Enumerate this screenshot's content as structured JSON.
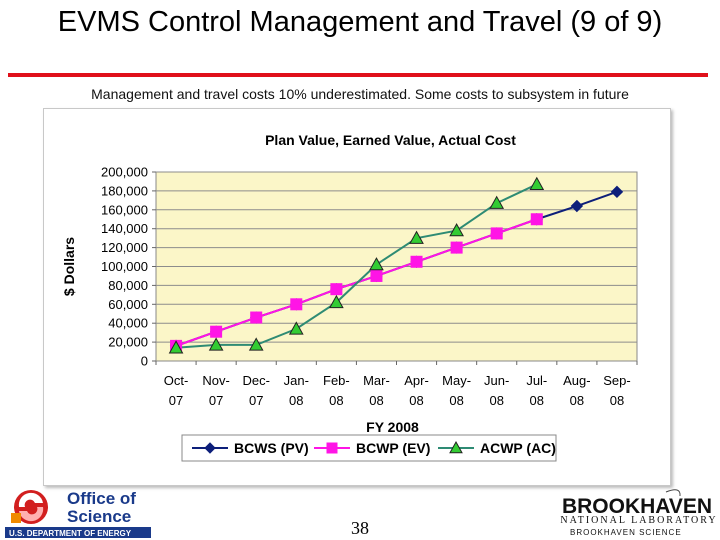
{
  "slide": {
    "title": "EVMS Control Management and Travel (9 of 9)",
    "subtitle": "Management and travel costs 10% underestimated. Some costs to subsystem in future",
    "page_number": "38",
    "accent_color": "#e0101a"
  },
  "footer": {
    "left_logo": {
      "line1": "Office of",
      "line2": "Science",
      "line3": "U.S. DEPARTMENT OF ENERGY"
    },
    "right_logo": {
      "line1": "BROOKHAVEN",
      "line2": "NATIONAL LABORATORY",
      "line3": "BROOKHAVEN SCIENCE"
    }
  },
  "chart_data": {
    "type": "line",
    "title": "Plan Value, Earned Value, Actual Cost",
    "xlabel": "FY 2008",
    "ylabel": "$ Dollars",
    "ylim": [
      0,
      200000
    ],
    "yticks": [
      "0",
      "20,000",
      "40,000",
      "60,000",
      "80,000",
      "100,000",
      "120,000",
      "140,000",
      "160,000",
      "180,000",
      "200,000"
    ],
    "categories": [
      [
        "Oct-",
        "07"
      ],
      [
        "Nov-",
        "07"
      ],
      [
        "Dec-",
        "07"
      ],
      [
        "Jan-",
        "08"
      ],
      [
        "Feb-",
        "08"
      ],
      [
        "Mar-",
        "08"
      ],
      [
        "Apr-",
        "08"
      ],
      [
        "May-",
        "08"
      ],
      [
        "Jun-",
        "08"
      ],
      [
        "Jul-",
        "08"
      ],
      [
        "Aug-",
        "08"
      ],
      [
        "Sep-",
        "08"
      ]
    ],
    "plot_background": "#fbf6c8",
    "legend_position": "bottom",
    "series": [
      {
        "name": "BCWS (PV)",
        "color": "#0d1f7a",
        "marker": "diamond",
        "values": [
          16000,
          31000,
          46000,
          60000,
          76000,
          90000,
          105000,
          120000,
          135000,
          150000,
          164000,
          179000
        ]
      },
      {
        "name": "BCWP (EV)",
        "color": "#ff14e6",
        "marker": "square",
        "values": [
          16000,
          31000,
          46000,
          60000,
          76000,
          90000,
          105000,
          120000,
          135000,
          150000,
          null,
          null
        ]
      },
      {
        "name": "ACWP (AC)",
        "color": "#2e8b74",
        "marker": "triangle",
        "marker_fill": "#33cc33",
        "values": [
          14000,
          17000,
          17000,
          34000,
          62000,
          102000,
          130000,
          138000,
          167000,
          187000,
          null,
          null
        ]
      }
    ]
  }
}
